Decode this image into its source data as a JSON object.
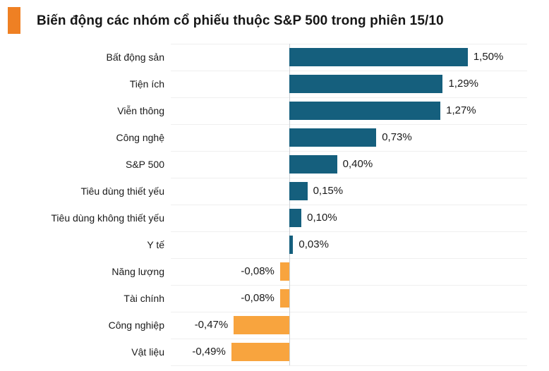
{
  "header": {
    "title": "Biến động các nhóm cổ phiếu thuộc S&P 500 trong phiên 15/10",
    "accent_color": "#ef8023"
  },
  "chart_data": {
    "type": "bar",
    "orientation": "horizontal",
    "title": "Biến động các nhóm cổ phiếu thuộc S&P 500 trong phiên 15/10",
    "categories": [
      "Bất động sản",
      "Tiện ích",
      "Viễn thông",
      "Công nghệ",
      "S&P 500",
      "Tiêu dùng thiết yếu",
      "Tiêu dùng không thiết yếu",
      "Y tế",
      "Năng lượng",
      "Tài chính",
      "Công nghiệp",
      "Vật liệu"
    ],
    "values": [
      1.5,
      1.29,
      1.27,
      0.73,
      0.4,
      0.15,
      0.1,
      0.03,
      -0.08,
      -0.08,
      -0.47,
      -0.49
    ],
    "value_labels": [
      "1,50%",
      "1,29%",
      "1,27%",
      "0,73%",
      "0,40%",
      "0,15%",
      "0,10%",
      "0,03%",
      "-0,08%",
      "-0,08%",
      "-0,47%",
      "-0,49%"
    ],
    "value_suffix": "%",
    "xlabel": "",
    "ylabel": "",
    "xlim": [
      -1.0,
      2.0
    ],
    "grid": "row-separators",
    "legend": "none",
    "positive_color": "#155f7d",
    "negative_color": "#f8a43e",
    "axis_line_color": "#ccd1d6",
    "grid_line_color": "#efefef",
    "label_color": "#1a1a1a"
  }
}
